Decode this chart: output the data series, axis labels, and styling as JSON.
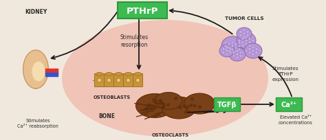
{
  "bg_color": "#f0e8dc",
  "green_box_color": "#3dba52",
  "green_box_edge_color": "#2a9a3a",
  "green_box_text_color": "#ffffff",
  "label_color": "#2a2a2a",
  "arrow_color": "#1a1a1a",
  "pink_blob_color": "#f0a090",
  "labels": {
    "PTHrP": "PTHrP",
    "TGFb": "TGFβ",
    "Ca2plus": "Ca²⁺",
    "kidney": "KIDNEY",
    "tumor": "TUMOR CELLS",
    "osteoblasts": "OSTEOBLASTS",
    "bone": "BONE",
    "osteoclasts": "OSTEOCLASTS",
    "stimulates_resorption": "Stimulates\nresorption",
    "stimulates_pthrp": "Stimulates\nPTHrP\nexpression",
    "stimulates_ca": "Stimulates\nCa²⁺ reabsorption",
    "elevated_ca": "Elevated Ca²⁺\nconcentrations"
  },
  "figsize": [
    4.74,
    2.05
  ],
  "dpi": 100
}
